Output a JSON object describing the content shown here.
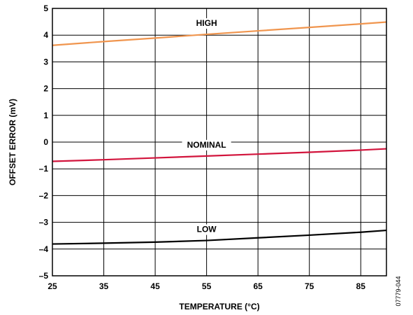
{
  "chart_data": {
    "type": "line",
    "xlabel": "TEMPERATURE (°C)",
    "ylabel": "OFFSET ERROR (mV)",
    "xlim": [
      25,
      90
    ],
    "ylim": [
      -5,
      5
    ],
    "x_ticks": [
      25,
      35,
      45,
      55,
      65,
      75,
      85
    ],
    "y_ticks": [
      5,
      4,
      3,
      2,
      1,
      0,
      -1,
      -2,
      -3,
      -4,
      -5
    ],
    "y_tick_labels": [
      "5",
      "4",
      "3",
      "2",
      "1",
      "0",
      "–1",
      "–2",
      "–3",
      "–4",
      "–5"
    ],
    "grid": true,
    "series": [
      {
        "name": "HIGH",
        "color": "#f0954e",
        "x": [
          25,
          35,
          45,
          55,
          65,
          75,
          85,
          90
        ],
        "y": [
          3.62,
          3.76,
          3.89,
          4.03,
          4.16,
          4.29,
          4.42,
          4.49
        ]
      },
      {
        "name": "NOMINAL",
        "color": "#d2143c",
        "x": [
          25,
          35,
          45,
          55,
          65,
          75,
          85,
          90
        ],
        "y": [
          -0.72,
          -0.66,
          -0.59,
          -0.52,
          -0.45,
          -0.38,
          -0.3,
          -0.25
        ]
      },
      {
        "name": "LOW",
        "color": "#000000",
        "x": [
          25,
          35,
          45,
          55,
          65,
          75,
          85,
          90
        ],
        "y": [
          -3.81,
          -3.78,
          -3.74,
          -3.68,
          -3.58,
          -3.48,
          -3.37,
          -3.3
        ]
      }
    ],
    "figure_id": "07779-044"
  }
}
